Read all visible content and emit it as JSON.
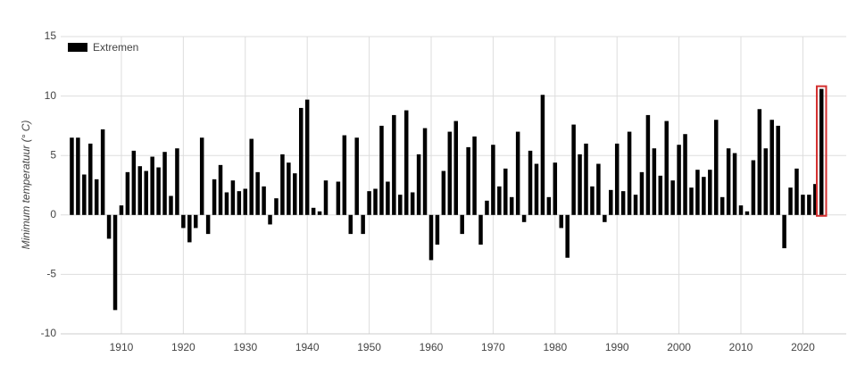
{
  "chart_data": {
    "type": "bar",
    "y_label": "Minimum temperatuur (° C)",
    "legend": "top-left",
    "grid": true,
    "color": "#000000",
    "series": [
      {
        "name": "Extremen",
        "color": "#000000",
        "values": [
          6.5,
          6.5,
          3.4,
          6.0,
          3.0,
          7.2,
          -2.0,
          -8.0,
          0.8,
          3.6,
          5.4,
          4.1,
          3.7,
          4.9,
          4.0,
          5.3,
          1.6,
          5.6,
          -1.1,
          -2.3,
          -1.1,
          6.5,
          -1.6,
          3.0,
          4.2,
          1.9,
          2.9,
          2.0,
          2.2,
          6.4,
          3.6,
          2.4,
          -0.8,
          1.4,
          5.1,
          4.4,
          3.5,
          9.0,
          9.7,
          0.6,
          0.3,
          2.9,
          0,
          2.8,
          6.7,
          -1.6,
          6.5,
          -1.6,
          2.0,
          2.2,
          7.5,
          2.8,
          8.4,
          1.7,
          8.8,
          1.9,
          5.1,
          7.3,
          -3.8,
          -2.5,
          3.7,
          7.0,
          7.9,
          -1.6,
          5.7,
          6.6,
          -2.5,
          1.2,
          5.9,
          2.4,
          3.9,
          1.5,
          7.0,
          -0.6,
          5.4,
          4.3,
          10.1,
          1.5,
          4.4,
          -1.1,
          -3.6,
          7.6,
          5.1,
          6.0,
          2.4,
          4.3,
          -0.6,
          2.1,
          6.0,
          2.0,
          7.0,
          1.7,
          3.6,
          8.4,
          5.6,
          3.3,
          7.9,
          2.9,
          5.9,
          6.8,
          2.3,
          3.8,
          3.2,
          3.8,
          8.0,
          1.5,
          5.6,
          5.2,
          0.8,
          0.3,
          4.6,
          8.9,
          5.6,
          8.0,
          7.5,
          -2.8,
          2.3,
          3.9,
          1.7,
          1.7,
          2.6,
          10.6
        ]
      }
    ],
    "x": [
      1902,
      1903,
      1904,
      1905,
      1906,
      1907,
      1908,
      1909,
      1910,
      1911,
      1912,
      1913,
      1914,
      1915,
      1916,
      1917,
      1918,
      1919,
      1920,
      1921,
      1922,
      1923,
      1924,
      1925,
      1926,
      1927,
      1928,
      1929,
      1930,
      1931,
      1932,
      1933,
      1934,
      1935,
      1936,
      1937,
      1938,
      1939,
      1940,
      1941,
      1942,
      1943,
      1944,
      1945,
      1946,
      1947,
      1948,
      1949,
      1950,
      1951,
      1952,
      1953,
      1954,
      1955,
      1956,
      1957,
      1958,
      1959,
      1960,
      1961,
      1962,
      1963,
      1964,
      1965,
      1966,
      1967,
      1968,
      1969,
      1970,
      1971,
      1972,
      1973,
      1974,
      1975,
      1976,
      1977,
      1978,
      1979,
      1980,
      1981,
      1982,
      1983,
      1984,
      1985,
      1986,
      1987,
      1988,
      1989,
      1990,
      1991,
      1992,
      1993,
      1994,
      1995,
      1996,
      1997,
      1998,
      1999,
      2000,
      2001,
      2002,
      2003,
      2004,
      2005,
      2006,
      2007,
      2008,
      2009,
      2010,
      2011,
      2012,
      2013,
      2014,
      2015,
      2016,
      2017,
      2018,
      2019,
      2020,
      2021,
      2022,
      2023
    ],
    "xlim": [
      1901,
      2027
    ],
    "xticks": [
      1910,
      1920,
      1930,
      1940,
      1950,
      1960,
      1970,
      1980,
      1990,
      2000,
      2010,
      2020
    ],
    "ylim": [
      -10,
      15
    ],
    "yticks": [
      -10,
      -5,
      0,
      5,
      10,
      15
    ],
    "highlight": {
      "x": 2023,
      "color": "#d32f2f"
    }
  }
}
